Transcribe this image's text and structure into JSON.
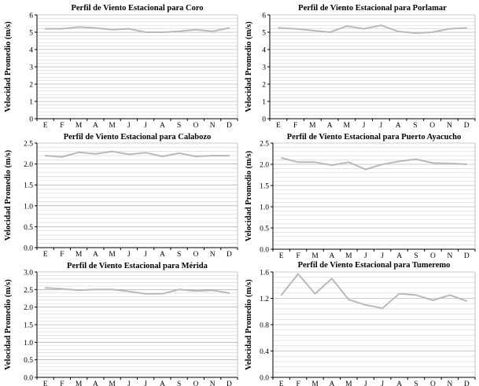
{
  "chart_data": [
    {
      "type": "line",
      "title": "Perfil de Viento Estacional para Coro",
      "ylabel": "Velocidad Promedio (m/s)",
      "xlabel": "",
      "categories": [
        "E",
        "F",
        "M",
        "A",
        "M",
        "J",
        "J",
        "A",
        "S",
        "O",
        "N",
        "D"
      ],
      "ylim": [
        0,
        6
      ],
      "yticks": [
        "0",
        "1",
        "2",
        "3",
        "4",
        "5",
        "6"
      ],
      "series": [
        {
          "values": [
            5.2,
            5.2,
            5.3,
            5.25,
            5.15,
            5.2,
            5.0,
            5.0,
            5.05,
            5.15,
            5.05,
            5.25
          ]
        }
      ],
      "grid": true
    },
    {
      "type": "line",
      "title": "Perfil de Viento Estacional para Porlamar",
      "ylabel": "Velocidad Promedio (m/s)",
      "xlabel": "",
      "categories": [
        "E",
        "F",
        "M",
        "A",
        "M",
        "J",
        "J",
        "A",
        "S",
        "O",
        "N",
        "D"
      ],
      "ylim": [
        0,
        6
      ],
      "yticks": [
        "0",
        "1",
        "2",
        "3",
        "4",
        "5",
        "6"
      ],
      "series": [
        {
          "values": [
            5.25,
            5.2,
            5.1,
            5.0,
            5.35,
            5.2,
            5.4,
            5.05,
            4.95,
            5.0,
            5.2,
            5.25
          ]
        }
      ],
      "grid": true
    },
    {
      "type": "line",
      "title": "Perfil de Viento Estacional para Calabozo",
      "ylabel": "Velocidad Promedio (m/s)",
      "xlabel": "",
      "categories": [
        "E",
        "F",
        "M",
        "A",
        "M",
        "J",
        "J",
        "A",
        "S",
        "O",
        "N",
        "D"
      ],
      "ylim": [
        0,
        2.5
      ],
      "yticks": [
        "0.0",
        "0.5",
        "1.0",
        "1.5",
        "2.0",
        "2.5"
      ],
      "series": [
        {
          "values": [
            2.2,
            2.17,
            2.28,
            2.24,
            2.3,
            2.23,
            2.27,
            2.18,
            2.26,
            2.18,
            2.2,
            2.2
          ]
        }
      ],
      "grid": true
    },
    {
      "type": "line",
      "title": "Perfil de Viento Estacional para Puerto Ayacucho",
      "ylabel": "Velocidad Promedio (m/s)",
      "xlabel": "",
      "categories": [
        "E",
        "F",
        "M",
        "A",
        "M",
        "J",
        "J",
        "A",
        "S",
        "O",
        "N",
        "D"
      ],
      "ylim": [
        0,
        2.5
      ],
      "yticks": [
        "0.0",
        "0.5",
        "1.0",
        "1.5",
        "2.0",
        "2.5"
      ],
      "series": [
        {
          "values": [
            2.15,
            2.05,
            2.05,
            1.98,
            2.05,
            1.88,
            2.0,
            2.07,
            2.12,
            2.03,
            2.02,
            2.0
          ]
        }
      ],
      "grid": true
    },
    {
      "type": "line",
      "title": "Perfil de Viento Estacional para Mérida",
      "ylabel": "Velocidad Promedio (m/s)",
      "xlabel": "",
      "categories": [
        "E",
        "F",
        "M",
        "A",
        "M",
        "J",
        "J",
        "A",
        "S",
        "O",
        "N",
        "D"
      ],
      "ylim": [
        0,
        3
      ],
      "yticks": [
        "0.0",
        "0.5",
        "1.0",
        "1.5",
        "2.0",
        "2.5",
        "3.0"
      ],
      "series": [
        {
          "values": [
            2.55,
            2.52,
            2.48,
            2.5,
            2.5,
            2.45,
            2.38,
            2.38,
            2.5,
            2.46,
            2.48,
            2.4
          ]
        }
      ],
      "grid": true
    },
    {
      "type": "line",
      "title": "Perfil de Viento Estacional para Tumeremo",
      "ylabel": "Velocidad Promedio (m/s)",
      "xlabel": "",
      "categories": [
        "E",
        "F",
        "M",
        "A",
        "M",
        "J",
        "J",
        "A",
        "S",
        "O",
        "N",
        "D"
      ],
      "ylim": [
        0,
        1.6
      ],
      "yticks": [
        "0.0",
        "0.4",
        "0.8",
        "1.2",
        "1.6"
      ],
      "series": [
        {
          "values": [
            1.25,
            1.57,
            1.27,
            1.5,
            1.18,
            1.1,
            1.05,
            1.27,
            1.25,
            1.17,
            1.25,
            1.16
          ]
        }
      ],
      "grid": true
    }
  ],
  "colors": {
    "line": "#b9b9b9",
    "grid": "#d4d4d4",
    "axis": "#000000"
  }
}
